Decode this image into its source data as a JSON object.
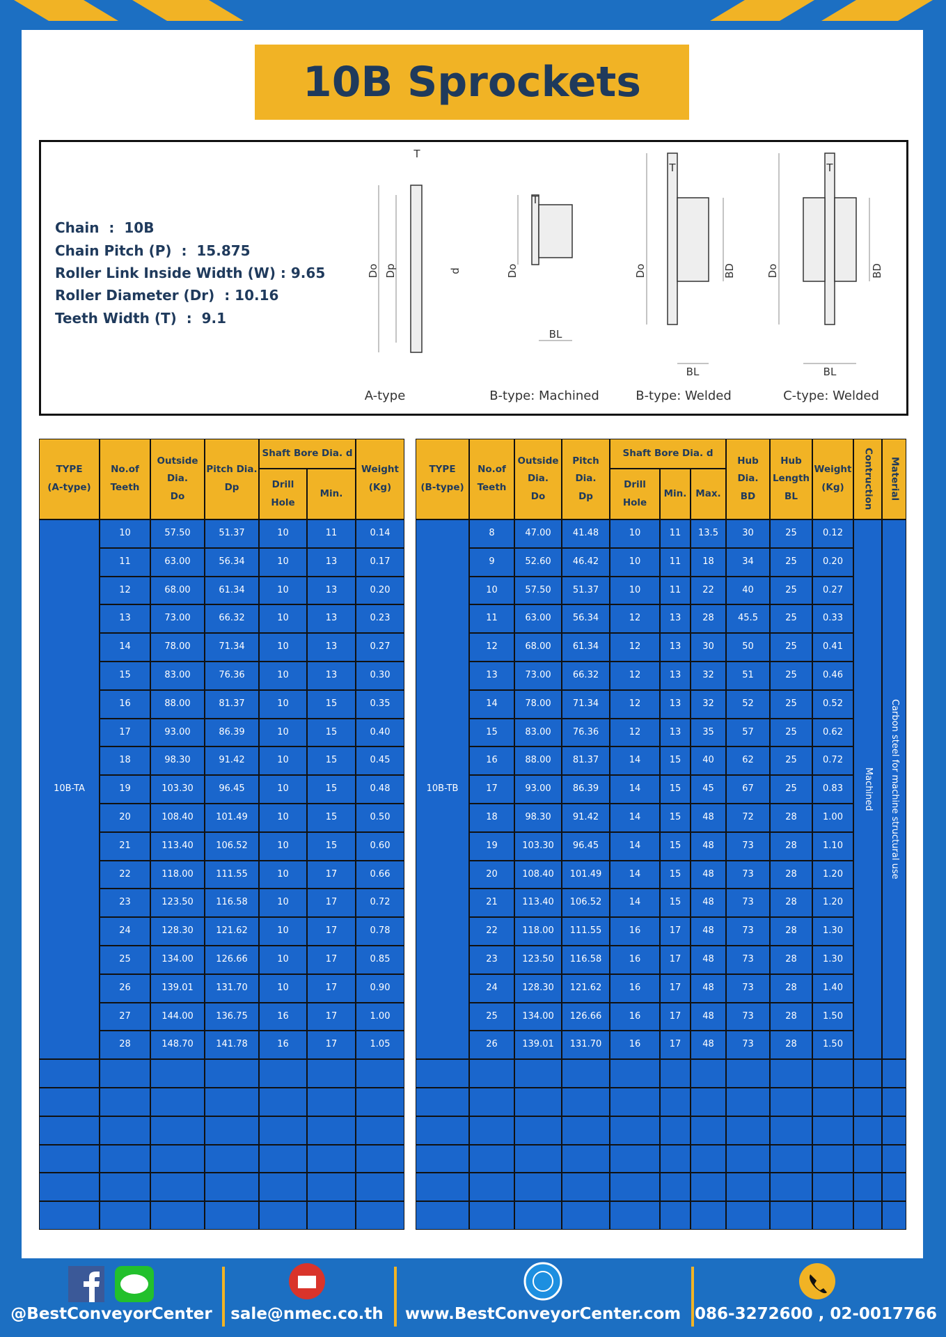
{
  "header": {
    "title": "10B Sprockets"
  },
  "specs": [
    "Chain  :  10B",
    "Chain Pitch (P)  :  15.875",
    "Roller Link Inside Width (W) : 9.65",
    "Roller Diameter (Dr)  : 10.16",
    "Teeth Width (T)  :  9.1"
  ],
  "diagram": {
    "labels": {
      "t": "T",
      "do": "Do",
      "dp": "Dp",
      "d": "d",
      "bd": "BD",
      "bl": "BL"
    },
    "captions": [
      "A-type",
      "B-type: Machined",
      "B-type: Welded",
      "C-type: Welded"
    ]
  },
  "table_a": {
    "headers": [
      [
        "TYPE",
        "(A-type)"
      ],
      [
        "No.of",
        "Teeth"
      ],
      [
        "Outside",
        "Dia.",
        "Do"
      ],
      [
        "Pitch Dia.",
        "Dp"
      ],
      [
        "Weight",
        "(Kg)"
      ]
    ],
    "bore_header": "Shaft Bore Dia. d",
    "bore_sub": [
      "Drill Hole",
      "Min."
    ],
    "type": "10B-TA",
    "rows": [
      [
        "10",
        "57.50",
        "51.37",
        "10",
        "11",
        "0.14"
      ],
      [
        "11",
        "63.00",
        "56.34",
        "10",
        "13",
        "0.17"
      ],
      [
        "12",
        "68.00",
        "61.34",
        "10",
        "13",
        "0.20"
      ],
      [
        "13",
        "73.00",
        "66.32",
        "10",
        "13",
        "0.23"
      ],
      [
        "14",
        "78.00",
        "71.34",
        "10",
        "13",
        "0.27"
      ],
      [
        "15",
        "83.00",
        "76.36",
        "10",
        "13",
        "0.30"
      ],
      [
        "16",
        "88.00",
        "81.37",
        "10",
        "15",
        "0.35"
      ],
      [
        "17",
        "93.00",
        "86.39",
        "10",
        "15",
        "0.40"
      ],
      [
        "18",
        "98.30",
        "91.42",
        "10",
        "15",
        "0.45"
      ],
      [
        "19",
        "103.30",
        "96.45",
        "10",
        "15",
        "0.48"
      ],
      [
        "20",
        "108.40",
        "101.49",
        "10",
        "15",
        "0.50"
      ],
      [
        "21",
        "113.40",
        "106.52",
        "10",
        "15",
        "0.60"
      ],
      [
        "22",
        "118.00",
        "111.55",
        "10",
        "17",
        "0.66"
      ],
      [
        "23",
        "123.50",
        "116.58",
        "10",
        "17",
        "0.72"
      ],
      [
        "24",
        "128.30",
        "121.62",
        "10",
        "17",
        "0.78"
      ],
      [
        "25",
        "134.00",
        "126.66",
        "10",
        "17",
        "0.85"
      ],
      [
        "26",
        "139.01",
        "131.70",
        "10",
        "17",
        "0.90"
      ],
      [
        "27",
        "144.00",
        "136.75",
        "16",
        "17",
        "1.00"
      ],
      [
        "28",
        "148.70",
        "141.78",
        "16",
        "17",
        "1.05"
      ]
    ]
  },
  "table_b": {
    "headers": [
      [
        "TYPE",
        "(B-type)"
      ],
      [
        "No.of",
        "Teeth"
      ],
      [
        "Outside",
        "Dia.",
        "Do"
      ],
      [
        "Pitch Dia.",
        "Dp"
      ],
      [
        "Hub Dia.",
        "BD"
      ],
      [
        "Hub",
        "Length",
        "BL"
      ],
      [
        "Weight",
        "(Kg)"
      ],
      [
        "Contruction"
      ],
      [
        "Material"
      ]
    ],
    "bore_header": "Shaft Bore Dia. d",
    "bore_sub": [
      "Drill Hole",
      "Min.",
      "Max."
    ],
    "type": "10B-TB",
    "construction": "Machined",
    "material": "Carbon steel  for machine structural use",
    "rows": [
      [
        "8",
        "47.00",
        "41.48",
        "10",
        "11",
        "13.5",
        "30",
        "25",
        "0.12"
      ],
      [
        "9",
        "52.60",
        "46.42",
        "10",
        "11",
        "18",
        "34",
        "25",
        "0.20"
      ],
      [
        "10",
        "57.50",
        "51.37",
        "10",
        "11",
        "22",
        "40",
        "25",
        "0.27"
      ],
      [
        "11",
        "63.00",
        "56.34",
        "12",
        "13",
        "28",
        "45.5",
        "25",
        "0.33"
      ],
      [
        "12",
        "68.00",
        "61.34",
        "12",
        "13",
        "30",
        "50",
        "25",
        "0.41"
      ],
      [
        "13",
        "73.00",
        "66.32",
        "12",
        "13",
        "32",
        "51",
        "25",
        "0.46"
      ],
      [
        "14",
        "78.00",
        "71.34",
        "12",
        "13",
        "32",
        "52",
        "25",
        "0.52"
      ],
      [
        "15",
        "83.00",
        "76.36",
        "12",
        "13",
        "35",
        "57",
        "25",
        "0.62"
      ],
      [
        "16",
        "88.00",
        "81.37",
        "14",
        "15",
        "40",
        "62",
        "25",
        "0.72"
      ],
      [
        "17",
        "93.00",
        "86.39",
        "14",
        "15",
        "45",
        "67",
        "25",
        "0.83"
      ],
      [
        "18",
        "98.30",
        "91.42",
        "14",
        "15",
        "48",
        "72",
        "28",
        "1.00"
      ],
      [
        "19",
        "103.30",
        "96.45",
        "14",
        "15",
        "48",
        "73",
        "28",
        "1.10"
      ],
      [
        "20",
        "108.40",
        "101.49",
        "14",
        "15",
        "48",
        "73",
        "28",
        "1.20"
      ],
      [
        "21",
        "113.40",
        "106.52",
        "14",
        "15",
        "48",
        "73",
        "28",
        "1.20"
      ],
      [
        "22",
        "118.00",
        "111.55",
        "16",
        "17",
        "48",
        "73",
        "28",
        "1.30"
      ],
      [
        "23",
        "123.50",
        "116.58",
        "16",
        "17",
        "48",
        "73",
        "28",
        "1.30"
      ],
      [
        "24",
        "128.30",
        "121.62",
        "16",
        "17",
        "48",
        "73",
        "28",
        "1.40"
      ],
      [
        "25",
        "134.00",
        "126.66",
        "16",
        "17",
        "48",
        "73",
        "28",
        "1.50"
      ],
      [
        "26",
        "139.01",
        "131.70",
        "16",
        "17",
        "48",
        "73",
        "28",
        "1.50"
      ]
    ]
  },
  "footer": {
    "line_icon": "LINE",
    "social": "@BestConveyorCenter",
    "email": "sale@nmec.co.th",
    "website": "www.BestConveyorCenter.com",
    "phone": "086-3272600 , 02-0017766"
  }
}
